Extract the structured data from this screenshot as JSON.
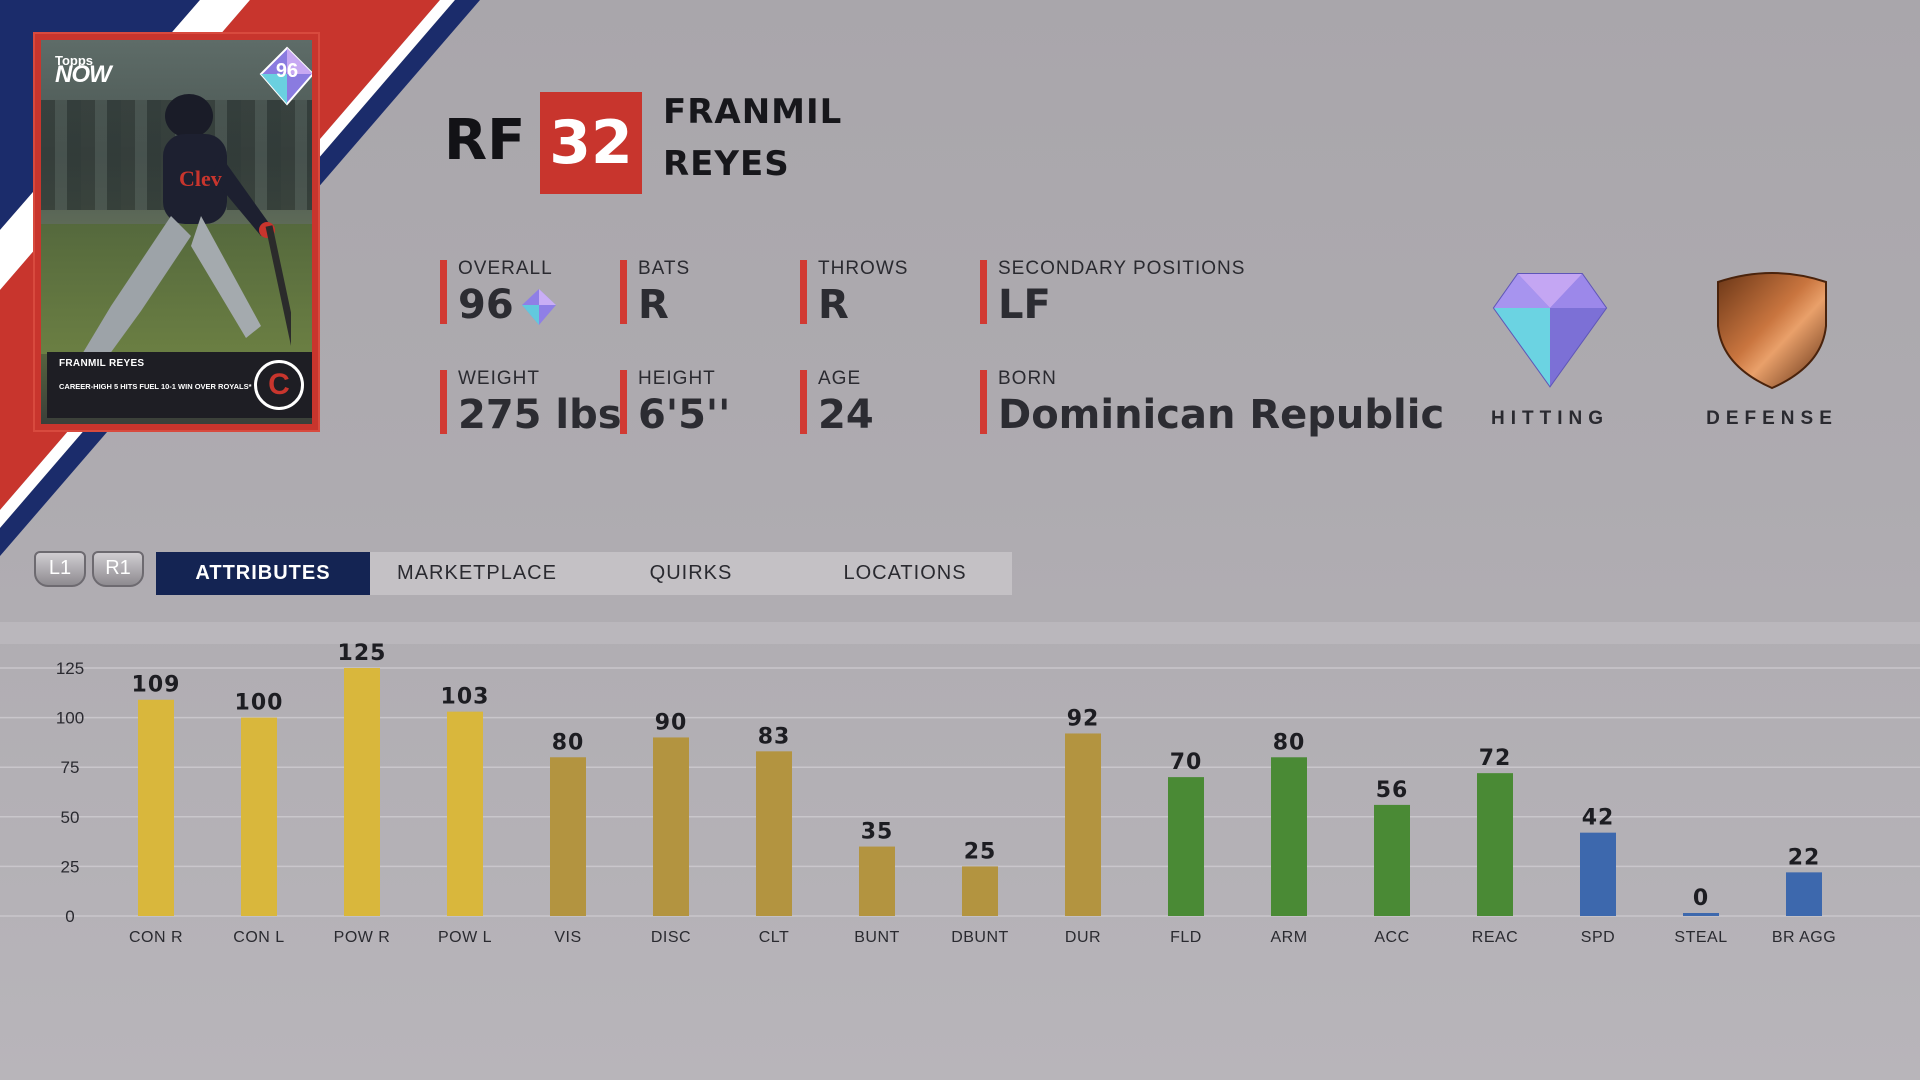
{
  "card": {
    "brand_small": "Topps",
    "brand_large": "NOW",
    "overall": "96",
    "name": "FRANMIL REYES",
    "caption": "CAREER-HIGH 5 HITS FUEL 10-1 WIN OVER ROYALS*",
    "team_logo": "C"
  },
  "player": {
    "position": "RF",
    "number": "32",
    "first_name": "FRANMIL",
    "last_name": "REYES"
  },
  "stats": {
    "overall": {
      "label": "OVERALL",
      "value": "96"
    },
    "bats": {
      "label": "BATS",
      "value": "R"
    },
    "throws": {
      "label": "THROWS",
      "value": "R"
    },
    "secondary": {
      "label": "SECONDARY POSITIONS",
      "value": "LF"
    },
    "weight": {
      "label": "WEIGHT",
      "value": "275 lbs"
    },
    "height": {
      "label": "HEIGHT",
      "value": "6'5''"
    },
    "age": {
      "label": "AGE",
      "value": "24"
    },
    "born": {
      "label": "BORN",
      "value": "Dominican Republic"
    }
  },
  "badges": {
    "hitting": {
      "label": "HITTING",
      "icon": "diamond-gem-icon"
    },
    "defense": {
      "label": "DEFENSE",
      "icon": "bronze-shield-icon"
    }
  },
  "nav": {
    "l1": "L1",
    "r1": "R1",
    "tabs": [
      "ATTRIBUTES",
      "MARKETPLACE",
      "QUIRKS",
      "LOCATIONS"
    ],
    "active_tab": "ATTRIBUTES"
  },
  "colors": {
    "contact_power": "#d9b73c",
    "hitting": "#b39440",
    "fielding": "#4a8a35",
    "running": "#3d68ad",
    "accent_red": "#c8352d",
    "tab_active": "#142453"
  },
  "chart_data": {
    "type": "bar",
    "categories": [
      "CON R",
      "CON L",
      "POW R",
      "POW L",
      "VIS",
      "DISC",
      "CLT",
      "BUNT",
      "DBUNT",
      "DUR",
      "FLD",
      "ARM",
      "ACC",
      "REAC",
      "SPD",
      "STEAL",
      "BR AGG"
    ],
    "values": [
      109,
      100,
      125,
      103,
      80,
      90,
      83,
      35,
      25,
      92,
      70,
      80,
      56,
      72,
      42,
      0,
      22
    ],
    "groups": [
      "contact_power",
      "contact_power",
      "contact_power",
      "contact_power",
      "hitting",
      "hitting",
      "hitting",
      "hitting",
      "hitting",
      "hitting",
      "fielding",
      "fielding",
      "fielding",
      "fielding",
      "running",
      "running",
      "running"
    ],
    "yticks": [
      0,
      25,
      50,
      75,
      100,
      125
    ],
    "ylim": [
      0,
      125
    ],
    "grid": true
  }
}
